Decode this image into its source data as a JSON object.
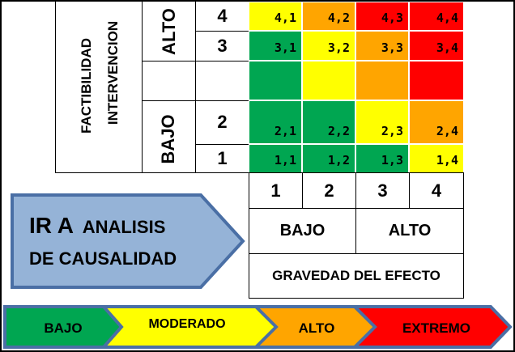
{
  "y_axis": {
    "title_line1": "FACTIBILIDAD",
    "title_line2": "INTERVENCION",
    "high_label": "ALTO",
    "low_label": "BAJO",
    "levels": [
      "4",
      "3",
      "2",
      "1"
    ]
  },
  "x_axis": {
    "levels": [
      "1",
      "2",
      "3",
      "4"
    ],
    "low_label": "BAJO",
    "high_label": "ALTO",
    "title": "GRAVEDAD DEL EFECTO"
  },
  "matrix": {
    "rows": [
      [
        {
          "label": "4,1",
          "level": "moderado"
        },
        {
          "label": "4,2",
          "level": "alto"
        },
        {
          "label": "4,3",
          "level": "extremo"
        },
        {
          "label": "4,4",
          "level": "extremo"
        }
      ],
      [
        {
          "label": "3,1",
          "level": "bajo"
        },
        {
          "label": "3,2",
          "level": "moderado"
        },
        {
          "label": "3,3",
          "level": "alto"
        },
        {
          "label": "3,4",
          "level": "extremo"
        }
      ],
      [
        {
          "label": "",
          "level": "bajo"
        },
        {
          "label": "",
          "level": "moderado"
        },
        {
          "label": "",
          "level": "alto"
        },
        {
          "label": "",
          "level": "extremo"
        }
      ],
      [
        {
          "label": "2,1",
          "level": "bajo"
        },
        {
          "label": "2,2",
          "level": "bajo"
        },
        {
          "label": "2,3",
          "level": "moderado"
        },
        {
          "label": "2,4",
          "level": "alto"
        }
      ],
      [
        {
          "label": "1,1",
          "level": "bajo"
        },
        {
          "label": "1,2",
          "level": "bajo"
        },
        {
          "label": "1,3",
          "level": "bajo"
        },
        {
          "label": "1,4",
          "level": "moderado"
        }
      ]
    ]
  },
  "colors": {
    "bajo": "#00a651",
    "moderado": "#ffff00",
    "alto": "#ffa500",
    "extremo": "#ff0000",
    "arrow_fill": "#95b3d7",
    "arrow_stroke": "#4a6fa5"
  },
  "callout": {
    "ir_a": "IR A",
    "line1_rest": "ANALISIS",
    "line2": "DE CAUSALIDAD"
  },
  "legend": [
    {
      "label": "BAJO",
      "level": "bajo"
    },
    {
      "label": "MODERADO",
      "level": "moderado"
    },
    {
      "label": "ALTO",
      "level": "alto"
    },
    {
      "label": "EXTREMO",
      "level": "extremo"
    }
  ]
}
